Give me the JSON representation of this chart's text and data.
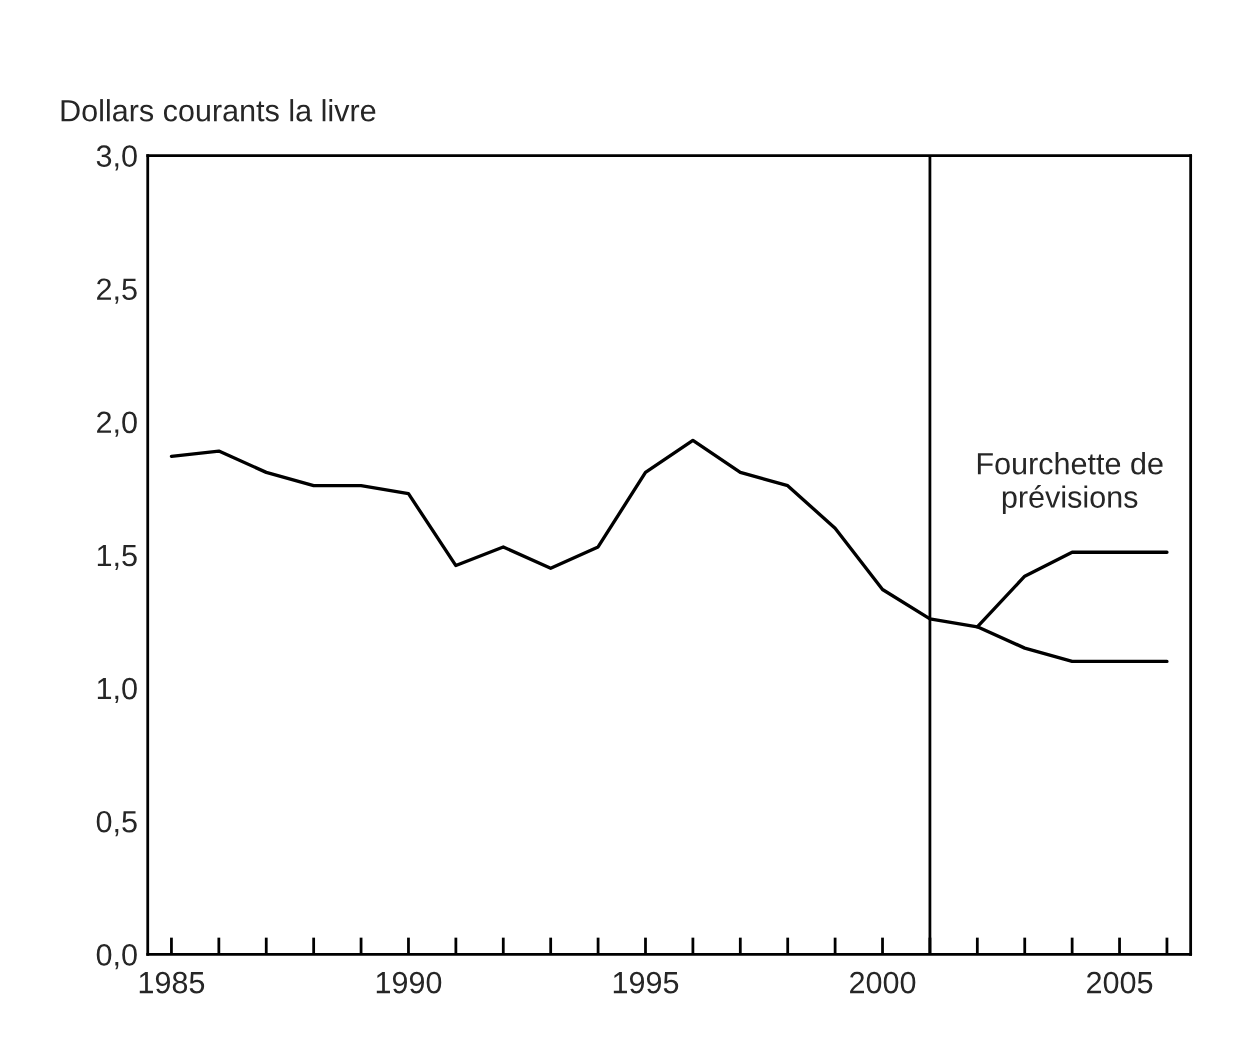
{
  "chart_data": {
    "type": "line",
    "ylabel": "Dollars courants la livre",
    "series": [
      {
        "color": "#000000",
        "x": [
          1985,
          1986,
          1987,
          1988,
          1989,
          1990,
          1991,
          1992,
          1993,
          1994,
          1995,
          1996,
          1997,
          1998,
          1999,
          2000,
          2001,
          2002,
          2003,
          2004,
          2005,
          2006
        ],
        "values": [
          1.87,
          1.89,
          1.81,
          1.76,
          1.76,
          1.73,
          1.46,
          1.53,
          1.45,
          1.53,
          1.81,
          1.93,
          1.81,
          1.76,
          1.6,
          1.37,
          1.26,
          1.23,
          1.15,
          1.1,
          1.1,
          1.1
        ]
      },
      {
        "color": "#000000",
        "x": [
          2002,
          2003,
          2004,
          2005,
          2006
        ],
        "values": [
          1.23,
          1.42,
          1.51,
          1.51,
          1.51
        ]
      }
    ],
    "ref_lines": [
      {
        "axis": "x",
        "value": 2001,
        "color": "#000000"
      }
    ],
    "annotations": [
      "Fourchette de\nprévisions"
    ],
    "xlim": [
      1984.5,
      2006.5
    ],
    "xticks": [
      1985,
      {
        "value": 1986,
        "label": null
      },
      {
        "value": 1987,
        "label": null
      },
      {
        "value": 1988,
        "label": null
      },
      {
        "value": 1989,
        "label": null
      },
      1990,
      {
        "value": 1991,
        "label": null
      },
      {
        "value": 1992,
        "label": null
      },
      {
        "value": 1993,
        "label": null
      },
      {
        "value": 1994,
        "label": null
      },
      1995,
      {
        "value": 1996,
        "label": null
      },
      {
        "value": 1997,
        "label": null
      },
      {
        "value": 1998,
        "label": null
      },
      {
        "value": 1999,
        "label": null
      },
      2000,
      {
        "value": 2001,
        "label": null
      },
      {
        "value": 2002,
        "label": null
      },
      {
        "value": 2003,
        "label": null
      },
      {
        "value": 2004,
        "label": null
      },
      2005,
      {
        "value": 2006,
        "label": null
      }
    ],
    "ylim": [
      0,
      3
    ],
    "yticks": [
      {
        "value": 0,
        "label": "0,0"
      },
      {
        "value": 0.5,
        "label": "0,5"
      },
      {
        "value": 1,
        "label": "1,0"
      },
      {
        "value": 1.5,
        "label": "1,5"
      },
      {
        "value": 2,
        "label": "2,0"
      },
      {
        "value": 2.5,
        "label": "2,5"
      },
      {
        "value": 3,
        "label": "3,0"
      }
    ],
    "grid": false,
    "legend": false,
    "marker": "none",
    "line_style": "solid"
  }
}
